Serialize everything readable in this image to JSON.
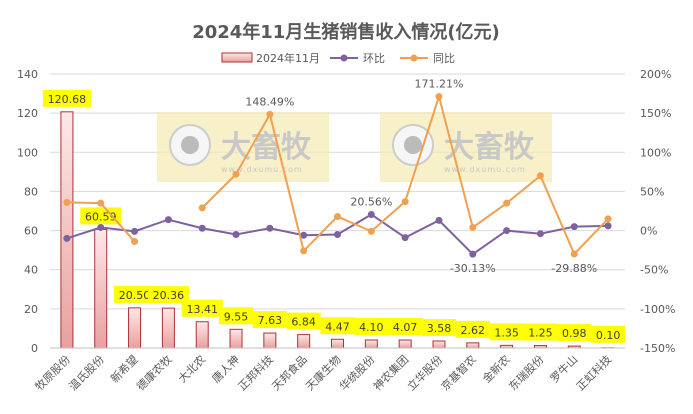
{
  "chart_data": {
    "type": "bar+line",
    "title": "2024年11月生猪销售收入情况(亿元)",
    "categories": [
      "牧原股份",
      "温氏股份",
      "新希望",
      "德康农牧",
      "大北农",
      "唐人神",
      "正邦科技",
      "天邦食品",
      "天康生物",
      "华统股份",
      "神农集团",
      "立华股份",
      "京基智农",
      "金新农",
      "东瑞股份",
      "罗牛山",
      "正虹科技"
    ],
    "series": [
      {
        "name": "2024年11月",
        "type": "bar",
        "axis": "left",
        "color": "#f4c2c2",
        "values": [
          120.68,
          60.59,
          20.5,
          20.36,
          13.41,
          9.55,
          7.63,
          6.84,
          4.47,
          4.1,
          4.07,
          3.58,
          2.62,
          1.35,
          1.25,
          0.98,
          0.1
        ],
        "labels": [
          "120.68",
          "60.59",
          "20.50",
          "20.36",
          "13.41",
          "9.55",
          "7.63",
          "6.84",
          "4.47",
          "4.10",
          "4.07",
          "3.58",
          "2.62",
          "1.35",
          "1.25",
          "0.98",
          "0.10"
        ]
      },
      {
        "name": "环比",
        "type": "line",
        "axis": "right",
        "color": "#7e61a0",
        "values": [
          -10,
          4,
          -1,
          14,
          3,
          -5,
          3,
          -6,
          -5,
          20.56,
          -9,
          13,
          -30.13,
          0,
          -4,
          5,
          6
        ],
        "labels": {
          "9": "20.56%",
          "12": "-30.13%"
        }
      },
      {
        "name": "同比",
        "type": "line",
        "axis": "right",
        "color": "#f0a050",
        "values": [
          36,
          35,
          -14,
          null,
          29,
          72,
          148.49,
          -26,
          18,
          -1,
          37,
          171.21,
          4,
          35,
          70,
          -29.88,
          15
        ],
        "labels": {
          "6": "148.49%",
          "11": "171.21%",
          "15": "-29.88%"
        }
      }
    ],
    "ylim_left": [
      0,
      140
    ],
    "yticks_left": [
      "0",
      "20",
      "40",
      "60",
      "80",
      "100",
      "120",
      "140"
    ],
    "ylim_right": [
      -150,
      200
    ],
    "yticks_right": [
      "-150%",
      "-100%",
      "-50%",
      "0%",
      "50%",
      "100%",
      "150%",
      "200%"
    ],
    "grid": true,
    "legend": "top",
    "watermark": "大畜牧 www.dxumu.com"
  }
}
